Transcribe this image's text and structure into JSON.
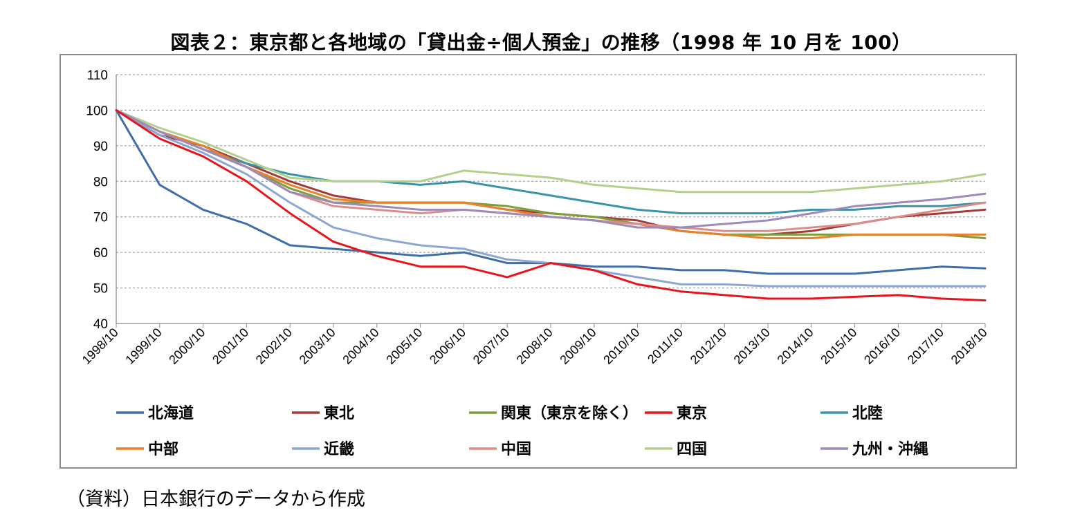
{
  "page": {
    "title": "図表２：東京都と各地域の「貸出金÷個人預金」の推移（1998 年 10 月を 100）",
    "source_note": "（資料）日本銀行のデータから作成"
  },
  "chart_data": {
    "type": "line",
    "title": "図表２：東京都と各地域の「貸出金÷個人預金」の推移（1998 年 10 月を 100）",
    "xlabel": "",
    "ylabel": "",
    "ylim": [
      40,
      110
    ],
    "yticks": [
      40,
      50,
      60,
      70,
      80,
      90,
      100,
      110
    ],
    "grid": "horizontal dashed",
    "legend_position": "bottom",
    "x": [
      "1998/10",
      "1999/10",
      "2000/10",
      "2001/10",
      "2002/10",
      "2003/10",
      "2004/10",
      "2005/10",
      "2006/10",
      "2007/10",
      "2008/10",
      "2009/10",
      "2010/10",
      "2011/10",
      "2012/10",
      "2013/10",
      "2014/10",
      "2015/10",
      "2016/10",
      "2017/10",
      "2018/10"
    ],
    "series": [
      {
        "name": "北海道",
        "color": "#3e6da8",
        "values": [
          100,
          79,
          72,
          68,
          62,
          61,
          60,
          59,
          60,
          57,
          57,
          56,
          56,
          55,
          55,
          54,
          54,
          54,
          55,
          56,
          55.5
        ]
      },
      {
        "name": "東北",
        "color": "#a33b37",
        "values": [
          100,
          93,
          90,
          85,
          80,
          76,
          74,
          74,
          74,
          72,
          71,
          70,
          69,
          66,
          65,
          65,
          66,
          68,
          70,
          71,
          72
        ]
      },
      {
        "name": "関東（東京を除く）",
        "color": "#7d9e3b",
        "values": [
          100,
          94,
          89,
          84,
          78,
          74,
          74,
          74,
          74,
          73,
          71,
          70,
          68,
          66,
          65,
          65,
          65,
          65,
          65,
          65,
          64
        ]
      },
      {
        "name": "東京",
        "color": "#e8141c",
        "values": [
          100,
          92,
          87,
          80,
          71,
          63,
          59,
          56,
          56,
          53,
          57,
          55,
          51,
          49,
          48,
          47,
          47,
          47.5,
          48,
          47,
          46.5
        ]
      },
      {
        "name": "北陸",
        "color": "#3a93a8",
        "values": [
          100,
          94,
          89,
          85,
          82,
          80,
          80,
          79,
          80,
          78,
          76,
          74,
          72,
          71,
          71,
          71,
          72,
          72,
          73,
          73,
          74
        ]
      },
      {
        "name": "中部",
        "color": "#e8812a",
        "values": [
          100,
          94,
          90,
          84,
          79,
          75,
          74,
          74,
          74,
          72,
          70,
          69,
          68,
          66,
          65,
          64,
          64,
          65,
          65,
          65,
          65
        ]
      },
      {
        "name": "近畿",
        "color": "#8ea7d1",
        "values": [
          100,
          93,
          88,
          82,
          74,
          67,
          64,
          62,
          61,
          58,
          57,
          55,
          53,
          51,
          51,
          50.5,
          50.5,
          50.5,
          50.5,
          50.5,
          50.5
        ]
      },
      {
        "name": "中国",
        "color": "#db8d8a",
        "values": [
          100,
          94,
          89,
          84,
          77,
          73,
          72,
          71,
          72,
          71,
          70,
          69,
          68,
          67,
          66,
          66,
          67,
          68,
          70,
          72,
          74
        ]
      },
      {
        "name": "四国",
        "color": "#b3cf8b",
        "values": [
          100,
          95,
          91,
          86,
          81,
          80,
          80,
          80,
          83,
          82,
          81,
          79,
          78,
          77,
          77,
          77,
          77,
          78,
          79,
          80,
          82
        ]
      },
      {
        "name": "九州・沖縄",
        "color": "#9e8ab8",
        "values": [
          100,
          94,
          89,
          84,
          77,
          74,
          73,
          72,
          72,
          71,
          70,
          69,
          67,
          67,
          68,
          69,
          71,
          73,
          74,
          75,
          76.5
        ]
      }
    ]
  }
}
